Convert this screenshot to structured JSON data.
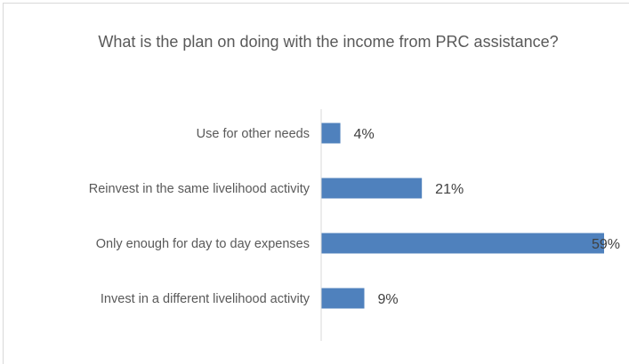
{
  "chart_data": {
    "type": "bar",
    "orientation": "horizontal",
    "title": "What is the plan on doing with the income from PRC assistance?",
    "categories": [
      "Use for other needs",
      "Reinvest in the same livelihood activity",
      "Only enough for day to day expenses",
      "Invest in a different livelihood activity"
    ],
    "values": [
      4,
      21,
      59,
      9
    ],
    "value_labels": [
      "4%",
      "21%",
      "59%",
      "9%"
    ],
    "unit": "%",
    "xlim": [
      0,
      59
    ],
    "grid": false,
    "legend": "none",
    "bar_color": "#4f81bd"
  }
}
